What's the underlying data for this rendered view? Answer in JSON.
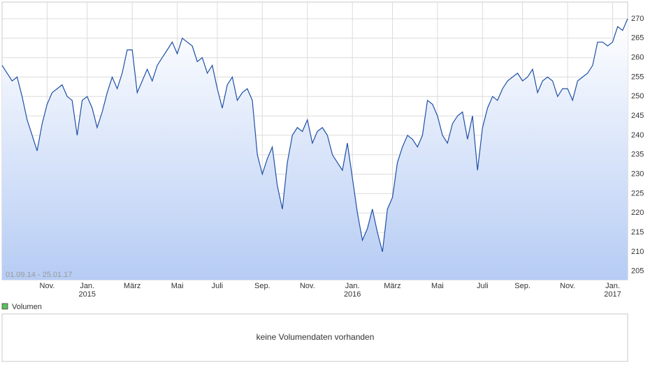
{
  "chart_data": {
    "type": "line",
    "range_label": "01.09.14 - 25.01.17",
    "categories": [
      null,
      null,
      null,
      null,
      null,
      null,
      null,
      null,
      null,
      "Nov.",
      null,
      null,
      null,
      null,
      null,
      null,
      null,
      "Jan.\n2015",
      null,
      null,
      null,
      null,
      null,
      null,
      null,
      null,
      "März",
      null,
      null,
      null,
      null,
      null,
      null,
      null,
      null,
      "Mai",
      null,
      null,
      null,
      null,
      null,
      null,
      null,
      "Juli",
      null,
      null,
      null,
      null,
      null,
      null,
      null,
      null,
      "Sep.",
      null,
      null,
      null,
      null,
      null,
      null,
      null,
      null,
      "Nov.",
      null,
      null,
      null,
      null,
      null,
      null,
      null,
      null,
      "Jan.\n2016",
      null,
      null,
      null,
      null,
      null,
      null,
      null,
      "März",
      null,
      null,
      null,
      null,
      null,
      null,
      null,
      null,
      "Mai",
      null,
      null,
      null,
      null,
      null,
      null,
      null,
      null,
      "Juli",
      null,
      null,
      null,
      null,
      null,
      null,
      null,
      "Sep.",
      null,
      null,
      null,
      null,
      null,
      null,
      null,
      null,
      "Nov.",
      null,
      null,
      null,
      null,
      null,
      null,
      null,
      null,
      "Jan.\n2017",
      null,
      null,
      null
    ],
    "series": [
      {
        "color": "#1f4fa6",
        "values": [
          258,
          256,
          254,
          255,
          250,
          244,
          240,
          236,
          243,
          248,
          251,
          252,
          253,
          250,
          249,
          240,
          249,
          250,
          247,
          242,
          246,
          251,
          255,
          252,
          256,
          262,
          262,
          251,
          254,
          257,
          254,
          258,
          260,
          262,
          264,
          261,
          265,
          264,
          263,
          259,
          260,
          256,
          258,
          252,
          247,
          253,
          255,
          249,
          251,
          252,
          249,
          235,
          230,
          234,
          237,
          227,
          221,
          233,
          240,
          242,
          241,
          244,
          238,
          241,
          242,
          240,
          235,
          233,
          231,
          238,
          229,
          220,
          213,
          216,
          221,
          215,
          210,
          221,
          224,
          233,
          237,
          240,
          239,
          237,
          240,
          249,
          248,
          245,
          240,
          238,
          243,
          245,
          246,
          239,
          245,
          231,
          242,
          247,
          250,
          249,
          252,
          254,
          255,
          256,
          254,
          255,
          257,
          251,
          254,
          255,
          254,
          250,
          252,
          252,
          249,
          254,
          255,
          256,
          258,
          264,
          264,
          263,
          264,
          268,
          267,
          270
        ]
      }
    ],
    "ylim": [
      202.8,
      274.3
    ],
    "yticks": [
      205,
      210,
      215,
      220,
      225,
      230,
      235,
      240,
      245,
      250,
      255,
      260,
      265,
      270
    ],
    "grid": true,
    "volume_legend": "Volumen",
    "volume_message": "keine Volumendaten vorhanden"
  }
}
